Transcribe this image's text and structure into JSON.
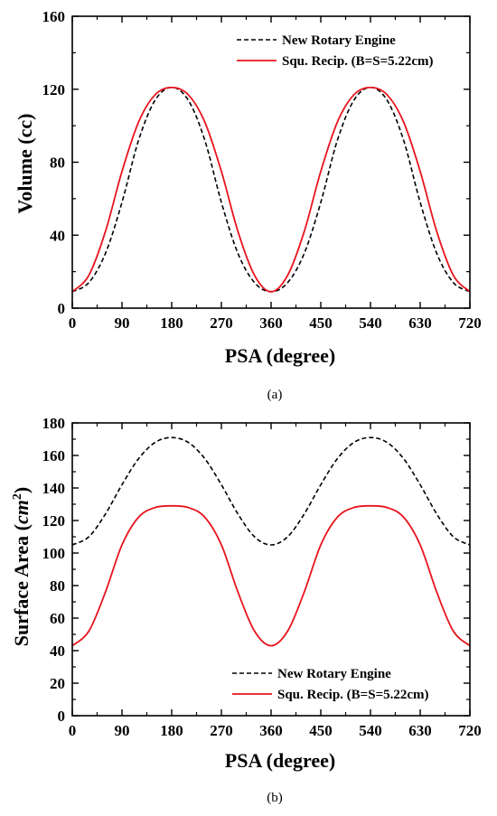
{
  "chart_data": [
    {
      "type": "line",
      "panel_label": "(a)",
      "xlabel": "PSA (degree)",
      "ylabel": "Volume (cc)",
      "xlim": [
        0,
        720
      ],
      "ylim": [
        0,
        160
      ],
      "xticks": [
        "0",
        "90",
        "180",
        "270",
        "360",
        "450",
        "540",
        "630",
        "720"
      ],
      "yticks": [
        "0",
        "40",
        "80",
        "120",
        "160"
      ],
      "legend_position": "top-right",
      "grid": false,
      "series": [
        {
          "name": "New Rotary Engine",
          "style": "dashed",
          "color": "#000000",
          "x": [
            0,
            30,
            60,
            90,
            120,
            150,
            180,
            210,
            240,
            270,
            300,
            330,
            360,
            390,
            420,
            450,
            480,
            510,
            540,
            570,
            600,
            630,
            660,
            690,
            720
          ],
          "y": [
            9,
            14,
            30,
            58,
            92,
            114,
            121,
            114,
            92,
            58,
            30,
            14,
            9,
            14,
            30,
            58,
            92,
            114,
            121,
            114,
            92,
            58,
            30,
            14,
            9
          ]
        },
        {
          "name": "Squ. Recip. (B=S=5.22cm)",
          "style": "solid",
          "color": "#e8141e",
          "x": [
            0,
            30,
            60,
            90,
            120,
            150,
            180,
            210,
            240,
            270,
            300,
            330,
            360,
            390,
            420,
            450,
            480,
            510,
            540,
            570,
            600,
            630,
            660,
            690,
            720
          ],
          "y": [
            9,
            18,
            42,
            75,
            102,
            117,
            121,
            117,
            102,
            75,
            42,
            18,
            9,
            18,
            42,
            75,
            102,
            117,
            121,
            117,
            102,
            75,
            42,
            18,
            9
          ]
        }
      ]
    },
    {
      "type": "line",
      "panel_label": "(b)",
      "xlabel": "PSA (degree)",
      "ylabel": "Surface Area (cm²)",
      "xlim": [
        0,
        720
      ],
      "ylim": [
        0,
        180
      ],
      "xticks": [
        "0",
        "90",
        "180",
        "270",
        "360",
        "450",
        "540",
        "630",
        "720"
      ],
      "yticks": [
        "0",
        "20",
        "40",
        "60",
        "80",
        "100",
        "120",
        "140",
        "160",
        "180"
      ],
      "legend_position": "bottom-right",
      "grid": false,
      "series": [
        {
          "name": "New Rotary Engine",
          "style": "dashed",
          "color": "#000000",
          "x": [
            0,
            30,
            60,
            90,
            120,
            150,
            180,
            210,
            240,
            270,
            300,
            330,
            360,
            390,
            420,
            450,
            480,
            510,
            540,
            570,
            600,
            630,
            660,
            690,
            720
          ],
          "y": [
            105,
            110,
            124,
            142,
            158,
            168,
            171,
            168,
            158,
            142,
            124,
            110,
            105,
            110,
            124,
            142,
            158,
            168,
            171,
            168,
            158,
            142,
            124,
            110,
            105
          ]
        },
        {
          "name": "Squ. Recip. (B=S=5.22cm)",
          "style": "solid",
          "color": "#e8141e",
          "x": [
            0,
            30,
            60,
            90,
            120,
            150,
            180,
            210,
            240,
            270,
            300,
            330,
            360,
            390,
            420,
            450,
            480,
            510,
            540,
            570,
            600,
            630,
            660,
            690,
            720
          ],
          "y": [
            43,
            52,
            76,
            105,
            122,
            128,
            129,
            128,
            122,
            105,
            76,
            52,
            43,
            52,
            76,
            105,
            122,
            128,
            129,
            128,
            122,
            105,
            76,
            52,
            43
          ]
        }
      ]
    }
  ]
}
